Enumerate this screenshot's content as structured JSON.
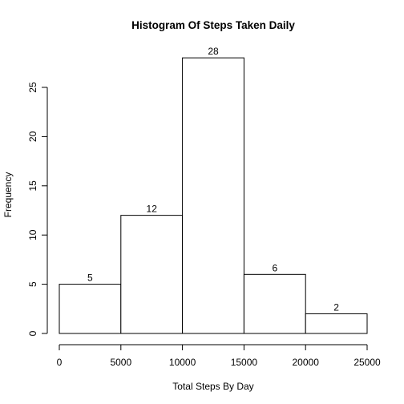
{
  "chart_data": {
    "type": "bar",
    "title": "Histogram Of Steps Taken Daily",
    "xlabel": "Total Steps By Day",
    "ylabel": "Frequency",
    "bins": [
      {
        "from": 0,
        "to": 5000,
        "count": 5
      },
      {
        "from": 5000,
        "to": 10000,
        "count": 12
      },
      {
        "from": 10000,
        "to": 15000,
        "count": 28
      },
      {
        "from": 15000,
        "to": 20000,
        "count": 6
      },
      {
        "from": 20000,
        "to": 25000,
        "count": 2
      }
    ],
    "data_labels": [
      "5",
      "12",
      "28",
      "6",
      "2"
    ],
    "xlim": [
      0,
      25000
    ],
    "ylim": [
      0,
      28
    ],
    "x_ticks": [
      0,
      5000,
      10000,
      15000,
      20000,
      25000
    ],
    "x_tick_labels": [
      "0",
      "5000",
      "10000",
      "15000",
      "20000",
      "25000"
    ],
    "y_ticks": [
      0,
      5,
      10,
      15,
      20,
      25
    ],
    "y_tick_labels": [
      "0",
      "5",
      "10",
      "15",
      "20",
      "25"
    ],
    "grid": false,
    "legend": "none",
    "colors": {
      "bar_fill": "#ffffff",
      "bar_stroke": "#000000",
      "text": "#000000"
    }
  }
}
